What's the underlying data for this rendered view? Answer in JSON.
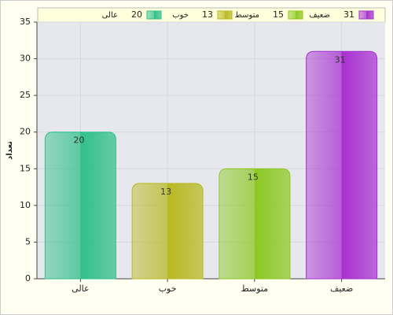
{
  "chart_data": {
    "type": "bar",
    "y_label": "تعداد",
    "categories": [
      "عالی",
      "خوب",
      "متوسط",
      "ضعیف"
    ],
    "values": [
      20,
      13,
      15,
      31
    ],
    "colors": [
      "#2fbf8a",
      "#b8b820",
      "#8cc820",
      "#a830d0"
    ],
    "ylim": [
      0,
      35
    ],
    "yticks": [
      0,
      5,
      10,
      15,
      20,
      25,
      30,
      35
    ],
    "grid": true,
    "legend": "top"
  }
}
